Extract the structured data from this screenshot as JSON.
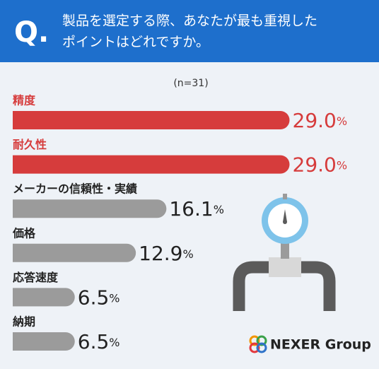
{
  "chart_data": {
    "type": "bar",
    "title_mark": "Q.",
    "title": [
      "製品を選定する際、あなたが最も重視した",
      "ポイントはどれですか。"
    ],
    "subtitle": "(n=31)",
    "categories": [
      "精度",
      "耐久性",
      "メーカーの信頼性・実績",
      "価格",
      "応答速度",
      "納期"
    ],
    "values": [
      29.0,
      29.0,
      16.1,
      12.9,
      6.5,
      6.5
    ],
    "value_labels": [
      "29.0%",
      "29.0%",
      "16.1%",
      "12.9%",
      "6.5%",
      "6.5%"
    ],
    "colors": [
      "#d63c3c",
      "#d63c3c",
      "#9b9b9b",
      "#9b9b9b",
      "#9b9b9b",
      "#9b9b9b"
    ],
    "logo": "NEXER Group"
  }
}
